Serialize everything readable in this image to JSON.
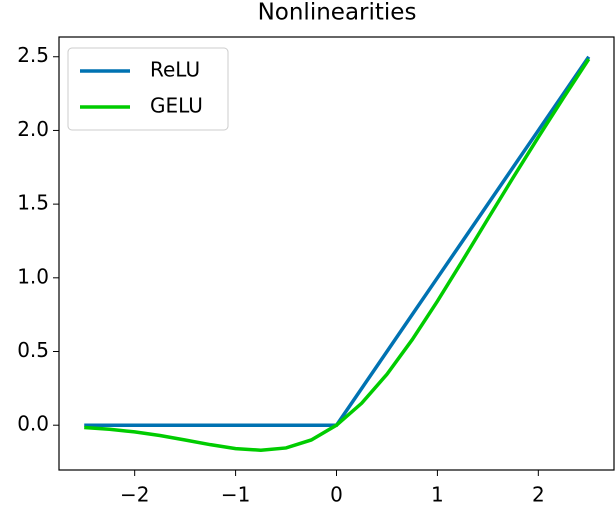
{
  "chart_data": {
    "type": "line",
    "title": "Nonlinearities",
    "x": [
      -2.5,
      -2.25,
      -2.0,
      -1.75,
      -1.5,
      -1.25,
      -1.0,
      -0.75,
      -0.5,
      -0.25,
      0,
      0.25,
      0.5,
      0.75,
      1.0,
      1.25,
      1.5,
      1.75,
      2.0,
      2.25,
      2.5
    ],
    "series": [
      {
        "name": "ReLU",
        "color": "#0072b2",
        "values": [
          0,
          0,
          0,
          0,
          0,
          0,
          0,
          0,
          0,
          0,
          0,
          0.25,
          0.5,
          0.75,
          1.0,
          1.25,
          1.5,
          1.75,
          2.0,
          2.25,
          2.5
        ]
      },
      {
        "name": "GELU",
        "color": "#00cc00",
        "values": [
          -0.0155,
          -0.0275,
          -0.0455,
          -0.0701,
          -0.1002,
          -0.1321,
          -0.1587,
          -0.17,
          -0.1543,
          -0.1003,
          0,
          0.1497,
          0.3457,
          0.58,
          0.8413,
          1.1179,
          1.3998,
          1.6799,
          1.9545,
          2.2225,
          2.4845
        ]
      }
    ],
    "xlim": [
      -2.75,
      2.75
    ],
    "ylim": [
      -0.304,
      2.634
    ],
    "xticks": [
      {
        "value": -2,
        "label": "−2"
      },
      {
        "value": -1,
        "label": "−1"
      },
      0,
      1,
      2
    ],
    "yticks": [
      {
        "value": 0,
        "label": "0.0"
      },
      0.5,
      {
        "value": 1,
        "label": "1.0"
      },
      1.5,
      {
        "value": 2,
        "label": "2.0"
      },
      2.5
    ],
    "legend": "upper left"
  }
}
